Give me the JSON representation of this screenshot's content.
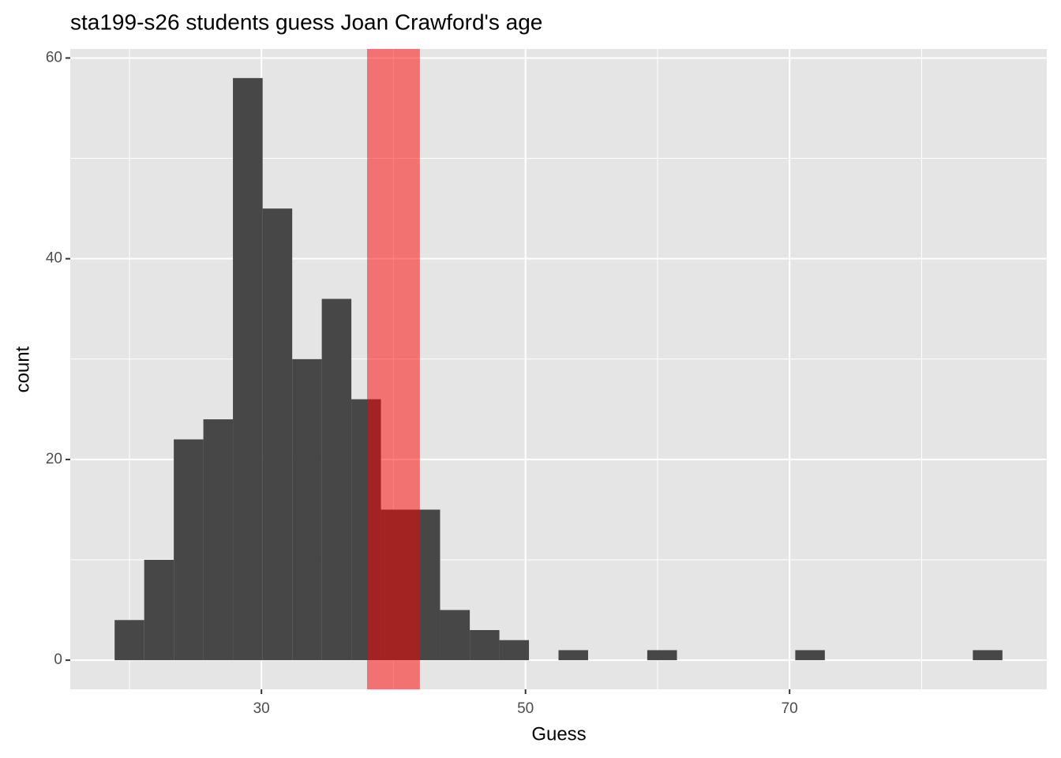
{
  "chart_data": {
    "type": "histogram",
    "title": "sta199-s26 students guess Joan Crawford's age",
    "x_label": "Guess",
    "y_label": "count",
    "bins": [
      18.88,
      21.12,
      23.36,
      25.6,
      27.84,
      30.09,
      32.33,
      34.57,
      36.81,
      39.05,
      41.29,
      43.53,
      45.78,
      48.02,
      50.26,
      52.5,
      54.74,
      56.98,
      59.22,
      61.47,
      63.71,
      65.95,
      68.19,
      70.43,
      72.67,
      74.91,
      77.16,
      79.4,
      81.64,
      83.88,
      86.12
    ],
    "values": [
      4,
      10,
      22,
      24,
      58,
      45,
      30,
      36,
      26,
      15,
      15,
      5,
      3,
      2,
      0,
      1,
      0,
      0,
      1,
      0,
      0,
      0,
      0,
      1,
      0,
      0,
      0,
      0,
      0,
      1
    ],
    "color": "#474747",
    "highlight": {
      "xmin": 38,
      "xmax": 42,
      "color": "#ff0000",
      "opacity": 0.5
    },
    "xlim": [
      15.52,
      89.48
    ],
    "ylim": [
      -2.9,
      60.9
    ],
    "xticks": [
      30,
      50,
      70
    ],
    "yticks": [
      0,
      20,
      40,
      60
    ],
    "x_minor_grid": [
      20,
      40,
      60,
      80
    ],
    "y_minor_grid": [
      10,
      30,
      50
    ],
    "grid": true
  }
}
